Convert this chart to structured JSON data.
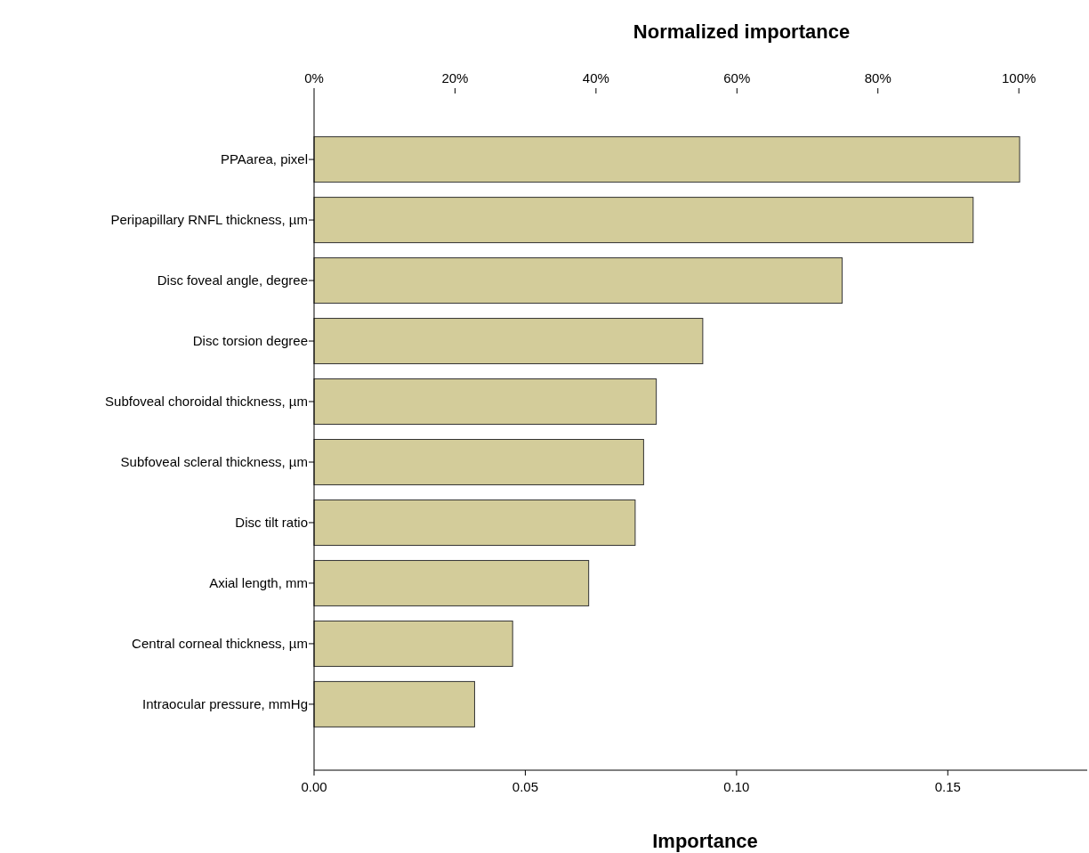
{
  "chart_data": {
    "type": "bar",
    "orientation": "horizontal",
    "xlabel": "Importance",
    "x2label": "Normalized importance",
    "categories": [
      "PPAarea, pixel",
      "Peripapillary RNFL thickness, µm",
      "Disc foveal angle, degree",
      "Disc torsion degree",
      "Subfoveal choroidal thickness, µm",
      "Subfoveal scleral thickness, µm",
      "Disc tilt ratio",
      "Axial length, mm",
      "Central corneal thickness, µm",
      "Intraocular pressure, mmHg"
    ],
    "series": [
      {
        "color": "#d3cc9a",
        "values": [
          0.167,
          0.156,
          0.125,
          0.092,
          0.081,
          0.078,
          0.076,
          0.065,
          0.047,
          0.038
        ]
      }
    ],
    "xlim": [
      0,
      0.183
    ],
    "xticks": [
      {
        "value": 0,
        "label": "0.00"
      },
      {
        "value": 0.05,
        "label": "0.05"
      },
      {
        "value": 0.1,
        "label": "0.10"
      },
      {
        "value": 0.15,
        "label": "0.15"
      }
    ],
    "x2lim": [
      0,
      109.7
    ],
    "x2ticks": [
      {
        "value": 0,
        "label": "0%"
      },
      {
        "value": 20,
        "label": "20%"
      },
      {
        "value": 40,
        "label": "40%"
      },
      {
        "value": 60,
        "label": "60%"
      },
      {
        "value": 80,
        "label": "80%"
      },
      {
        "value": 100,
        "label": "100%"
      }
    ],
    "grid": false
  }
}
